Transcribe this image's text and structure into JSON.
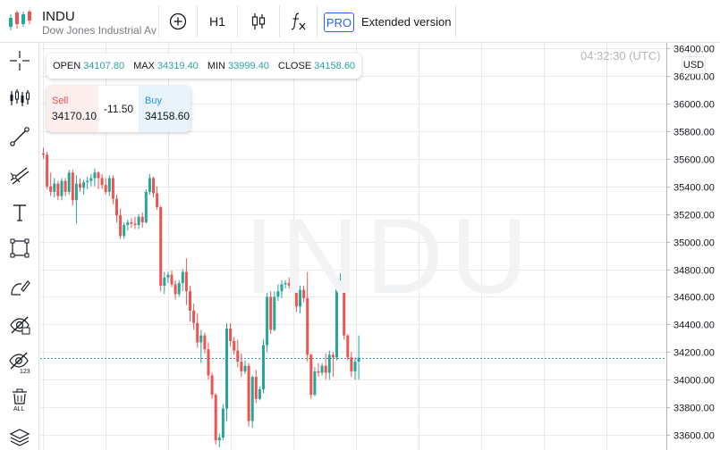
{
  "symbol": {
    "ticker": "INDU",
    "full_name": "Dow Jones Industrial Average"
  },
  "toolbar": {
    "add_icon": "plus-circle-icon",
    "timeframe": "H1",
    "chart_type_icon": "candlestick-icon",
    "indicators_icon": "fx-icon",
    "pro_badge": "PRO",
    "extended_label": "Extended version"
  },
  "left_tools": [
    "crosshair-icon",
    "indicators-icon",
    "trend-line-icon",
    "pitchfork-icon",
    "text-icon",
    "rectangle-icon",
    "brush-icon",
    "hide-drawings-icon",
    "hide-indicators-icon",
    "remove-all-icon",
    "layers-icon"
  ],
  "chart_header": {
    "time": "04:32:30 (UTC)",
    "currency": "USD"
  },
  "ohlc": {
    "open_label": "OPEN",
    "open": "34107.80",
    "max_label": "MAX",
    "max": "34319.40",
    "min_label": "MIN",
    "min": "33999.40",
    "close_label": "CLOSE",
    "close": "34158.60"
  },
  "trade": {
    "sell_label": "Sell",
    "sell_price": "34170.10",
    "spread": "-11.50",
    "buy_label": "Buy",
    "buy_price": "34158.60"
  },
  "watermark": "INDU",
  "colors": {
    "up": "#26a69a",
    "down": "#ef5350",
    "grid": "#e9e9ea",
    "price_line": "#26a69a"
  },
  "chart_data": {
    "type": "candlestick",
    "title": "",
    "ylabel": "",
    "ylim": [
      33490,
      36440
    ],
    "y_ticks": [
      "36400.00",
      "36200.00",
      "36000.00",
      "35800.00",
      "35600.00",
      "35400.00",
      "35200.00",
      "35000.00",
      "34800.00",
      "34600.00",
      "34400.00",
      "34200.00",
      "34000.00",
      "33800.00",
      "33600.00"
    ],
    "current_price": 34158.6,
    "grid": true,
    "ohlc_series": [
      [
        35640,
        35680,
        35600,
        35630
      ],
      [
        35630,
        35650,
        35380,
        35400
      ],
      [
        35400,
        35500,
        35330,
        35360
      ],
      [
        35360,
        35460,
        35320,
        35420
      ],
      [
        35420,
        35440,
        35300,
        35330
      ],
      [
        35330,
        35460,
        35300,
        35440
      ],
      [
        35440,
        35460,
        35330,
        35360
      ],
      [
        35360,
        35520,
        35340,
        35500
      ],
      [
        35500,
        35520,
        35260,
        35300
      ],
      [
        35300,
        35480,
        35130,
        35420
      ],
      [
        35420,
        35460,
        35360,
        35390
      ],
      [
        35390,
        35450,
        35340,
        35430
      ],
      [
        35430,
        35470,
        35380,
        35440
      ],
      [
        35440,
        35490,
        35400,
        35460
      ],
      [
        35460,
        35530,
        35400,
        35500
      ],
      [
        35500,
        35510,
        35380,
        35460
      ],
      [
        35460,
        35490,
        35380,
        35410
      ],
      [
        35410,
        35460,
        35340,
        35360
      ],
      [
        35360,
        35480,
        35330,
        35460
      ],
      [
        35460,
        35480,
        35270,
        35310
      ],
      [
        35310,
        35340,
        35140,
        35190
      ],
      [
        35190,
        35240,
        35020,
        35040
      ],
      [
        35040,
        35140,
        35020,
        35120
      ],
      [
        35120,
        35160,
        35080,
        35140
      ],
      [
        35140,
        35170,
        35100,
        35130
      ],
      [
        35130,
        35180,
        35090,
        35120
      ],
      [
        35120,
        35200,
        35090,
        35180
      ],
      [
        35180,
        35210,
        35100,
        35140
      ],
      [
        35140,
        35380,
        35130,
        35360
      ],
      [
        35360,
        35490,
        35340,
        35460
      ],
      [
        35460,
        35470,
        35320,
        35350
      ],
      [
        35350,
        35400,
        35230,
        35250
      ],
      [
        35250,
        35260,
        34640,
        34680
      ],
      [
        34680,
        34780,
        34620,
        34740
      ],
      [
        34740,
        34780,
        34700,
        34760
      ],
      [
        34760,
        34790,
        34670,
        34690
      ],
      [
        34690,
        34720,
        34580,
        34620
      ],
      [
        34620,
        34720,
        34600,
        34700
      ],
      [
        34700,
        34800,
        34640,
        34780
      ],
      [
        34780,
        34880,
        34540,
        34640
      ],
      [
        34640,
        34680,
        34420,
        34500
      ],
      [
        34500,
        34550,
        34360,
        34410
      ],
      [
        34410,
        34480,
        34230,
        34270
      ],
      [
        34270,
        34360,
        34120,
        34320
      ],
      [
        34320,
        34340,
        34190,
        34220
      ],
      [
        34220,
        34270,
        34000,
        34030
      ],
      [
        34030,
        34050,
        33860,
        33890
      ],
      [
        33890,
        33900,
        33530,
        33560
      ],
      [
        33560,
        33610,
        33510,
        33580
      ],
      [
        33580,
        33820,
        33560,
        33790
      ],
      [
        33790,
        34410,
        33700,
        34370
      ],
      [
        34370,
        34410,
        34240,
        34280
      ],
      [
        34280,
        34310,
        34180,
        34210
      ],
      [
        34210,
        34290,
        34090,
        34130
      ],
      [
        34130,
        34190,
        34020,
        34060
      ],
      [
        34060,
        34140,
        34040,
        34100
      ],
      [
        34100,
        34120,
        33660,
        33700
      ],
      [
        33700,
        34030,
        33650,
        34020
      ],
      [
        34020,
        34070,
        33830,
        33860
      ],
      [
        33860,
        33950,
        33850,
        33930
      ],
      [
        33930,
        34290,
        33900,
        34250
      ],
      [
        34250,
        34630,
        34200,
        34600
      ],
      [
        34600,
        34640,
        34330,
        34360
      ],
      [
        34360,
        34640,
        34350,
        34600
      ],
      [
        34600,
        34690,
        34570,
        34640
      ],
      [
        34640,
        34720,
        34590,
        34690
      ],
      [
        34690,
        34720,
        34660,
        34700
      ],
      [
        34700,
        34740,
        34660,
        34680
      ],
      [
        34680,
        34720,
        34640,
        34700
      ],
      [
        34700,
        34800,
        34490,
        34530
      ],
      [
        34530,
        34680,
        34480,
        34650
      ],
      [
        34650,
        34680,
        34560,
        34590
      ],
      [
        34590,
        34780,
        34130,
        34180
      ],
      [
        34180,
        34190,
        33860,
        33890
      ],
      [
        33890,
        34090,
        33880,
        34060
      ],
      [
        34060,
        34120,
        34020,
        34050
      ],
      [
        34050,
        34120,
        34030,
        34100
      ],
      [
        34100,
        34190,
        34000,
        34050
      ],
      [
        34050,
        34210,
        34000,
        34180
      ],
      [
        34180,
        34200,
        34020,
        34160
      ],
      [
        34160,
        34730,
        34140,
        34690
      ],
      [
        34690,
        34770,
        34650,
        34700
      ],
      [
        34700,
        34710,
        34290,
        34320
      ],
      [
        34320,
        34330,
        34140,
        34160
      ],
      [
        34160,
        34200,
        34020,
        34060
      ],
      [
        34060,
        34160,
        34000,
        34130
      ],
      [
        34130,
        34320,
        34000,
        34159
      ]
    ]
  }
}
